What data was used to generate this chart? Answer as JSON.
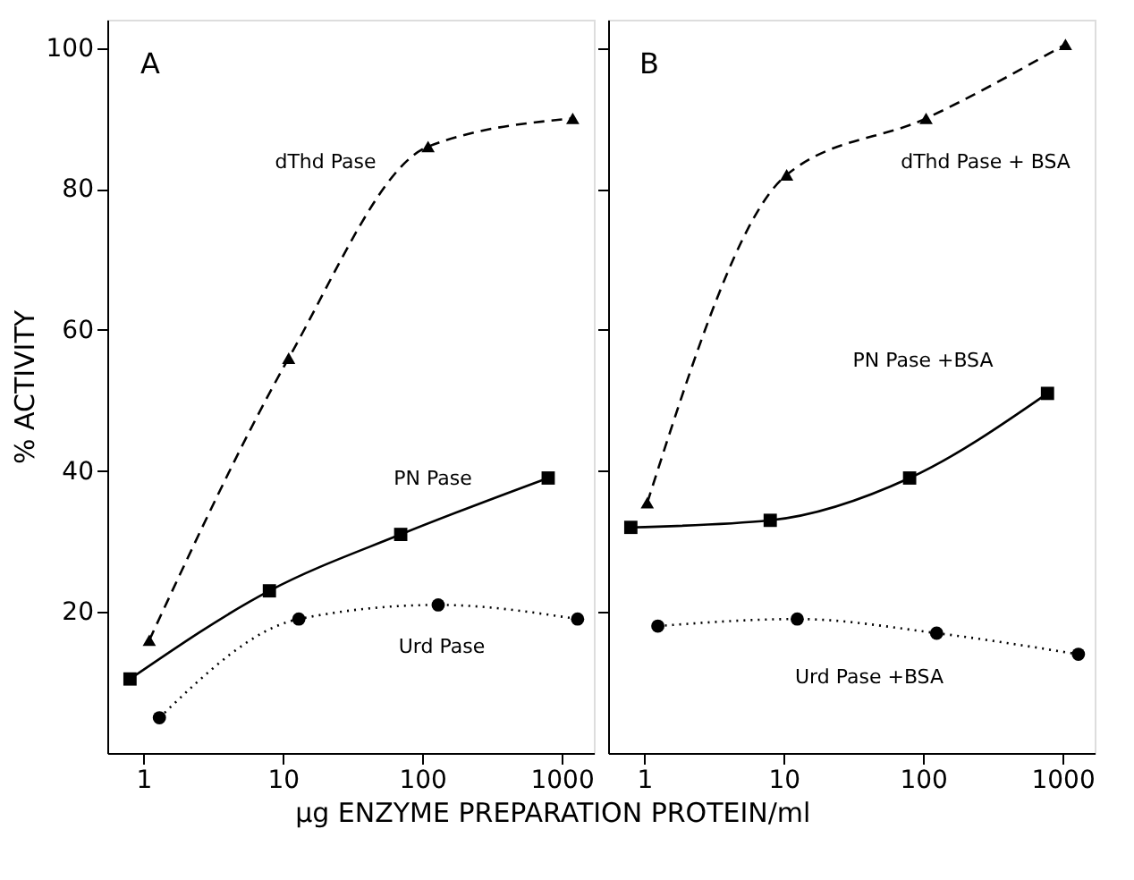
{
  "chart_data": [
    {
      "type": "line",
      "ylabel": "% ACTIVITY",
      "xlabel": "µg ENZYME PREPARATION PROTEIN/ml",
      "log": "x",
      "xlim": [
        0.55,
        1700
      ],
      "xticks": [
        1,
        10,
        100,
        1000
      ],
      "ylim": [
        0,
        104
      ],
      "yticks": [
        20,
        40,
        60,
        80,
        100
      ],
      "grid": false,
      "series": [
        {
          "color": "#000000",
          "line_style": "dashed",
          "marker": "triangle",
          "x": [
            1.1,
            11,
            110,
            1200
          ],
          "values": [
            16,
            56,
            86,
            90
          ]
        },
        {
          "color": "#000000",
          "line_style": "solid",
          "marker": "square",
          "x": [
            0.8,
            8,
            70,
            800
          ],
          "values": [
            10.5,
            23,
            31,
            39
          ]
        },
        {
          "color": "#000000",
          "line_style": "dotted",
          "marker": "circle",
          "x": [
            1.3,
            13,
            130,
            1300
          ],
          "values": [
            5,
            19,
            21,
            19
          ]
        }
      ],
      "annotations": [
        "A",
        "dThd Pase",
        "PN Pase",
        "Urd Pase"
      ]
    },
    {
      "type": "line",
      "log": "x",
      "xlim": [
        0.55,
        1700
      ],
      "xticks": [
        1,
        10,
        100,
        1000
      ],
      "ylim": [
        0,
        104
      ],
      "yticks": [
        {
          "value": 20,
          "label": null
        },
        {
          "value": 40,
          "label": null
        },
        {
          "value": 60,
          "label": null
        },
        {
          "value": 80,
          "label": null
        },
        {
          "value": 100,
          "label": null
        }
      ],
      "tick_labels": "x",
      "grid": false,
      "series": [
        {
          "color": "#000000",
          "line_style": "dashed",
          "marker": "triangle",
          "x": [
            1.05,
            10.5,
            105,
            1050
          ],
          "values": [
            35.5,
            82,
            90,
            100.5
          ]
        },
        {
          "color": "#000000",
          "line_style": "solid",
          "marker": "square",
          "x": [
            0.8,
            8,
            80,
            780
          ],
          "values": [
            32,
            33,
            39,
            51
          ]
        },
        {
          "color": "#000000",
          "line_style": "dotted",
          "marker": "circle",
          "x": [
            1.25,
            12.5,
            125,
            1300
          ],
          "values": [
            18,
            19,
            17,
            14
          ]
        }
      ],
      "annotations": [
        "B",
        "dThd Pase + BSA",
        "PN Pase +BSA",
        "Urd Pase +BSA"
      ]
    }
  ]
}
